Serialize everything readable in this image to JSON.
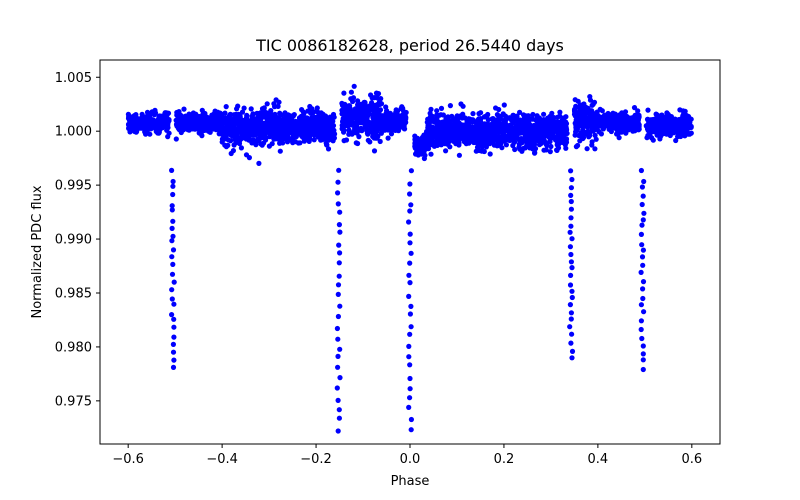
{
  "chart_data": {
    "type": "scatter",
    "title": "TIC 0086182628, period 26.5440 days",
    "xlabel": "Phase",
    "ylabel": "Normalized PDC flux",
    "xlim": [
      -0.66,
      0.66
    ],
    "ylim": [
      0.971,
      1.0066
    ],
    "xticks": [
      -0.6,
      -0.4,
      -0.2,
      0.0,
      0.2,
      0.4,
      0.6
    ],
    "xtick_labels": [
      "−0.6",
      "−0.4",
      "−0.2",
      "0.0",
      "0.2",
      "0.4",
      "0.6"
    ],
    "yticks": [
      0.975,
      0.98,
      0.985,
      0.99,
      0.995,
      1.0,
      1.005
    ],
    "ytick_labels": [
      "0.975",
      "0.980",
      "0.985",
      "0.990",
      "0.995",
      "1.000",
      "1.005"
    ],
    "grid": false,
    "marker_color": "#0000ff",
    "eclipses": [
      {
        "phase": -0.505,
        "min_flux": 0.978
      },
      {
        "phase": -0.152,
        "min_flux": 0.9723
      },
      {
        "phase": 0.0,
        "min_flux": 0.9725
      },
      {
        "phase": 0.343,
        "min_flux": 0.979
      },
      {
        "phase": 0.495,
        "min_flux": 0.978
      }
    ],
    "baseline_segments": [
      {
        "x0": -0.6,
        "x1": -0.512,
        "center": 1.0008,
        "spread": 0.0007
      },
      {
        "x0": -0.498,
        "x1": -0.4,
        "center": 1.0008,
        "spread": 0.0008
      },
      {
        "x0": -0.4,
        "x1": -0.16,
        "center": 1.0003,
        "spread": 0.0014
      },
      {
        "x0": -0.145,
        "x1": -0.06,
        "center": 1.0012,
        "spread": 0.0018
      },
      {
        "x0": -0.06,
        "x1": -0.008,
        "center": 1.0008,
        "spread": 0.0009
      },
      {
        "x0": 0.01,
        "x1": 0.035,
        "center": 0.9985,
        "spread": 0.001
      },
      {
        "x0": 0.035,
        "x1": 0.335,
        "center": 1.0,
        "spread": 0.0014
      },
      {
        "x0": 0.35,
        "x1": 0.4,
        "center": 1.001,
        "spread": 0.0018
      },
      {
        "x0": 0.4,
        "x1": 0.488,
        "center": 1.0008,
        "spread": 0.0008
      },
      {
        "x0": 0.502,
        "x1": 0.6,
        "center": 1.0005,
        "spread": 0.001
      }
    ]
  }
}
